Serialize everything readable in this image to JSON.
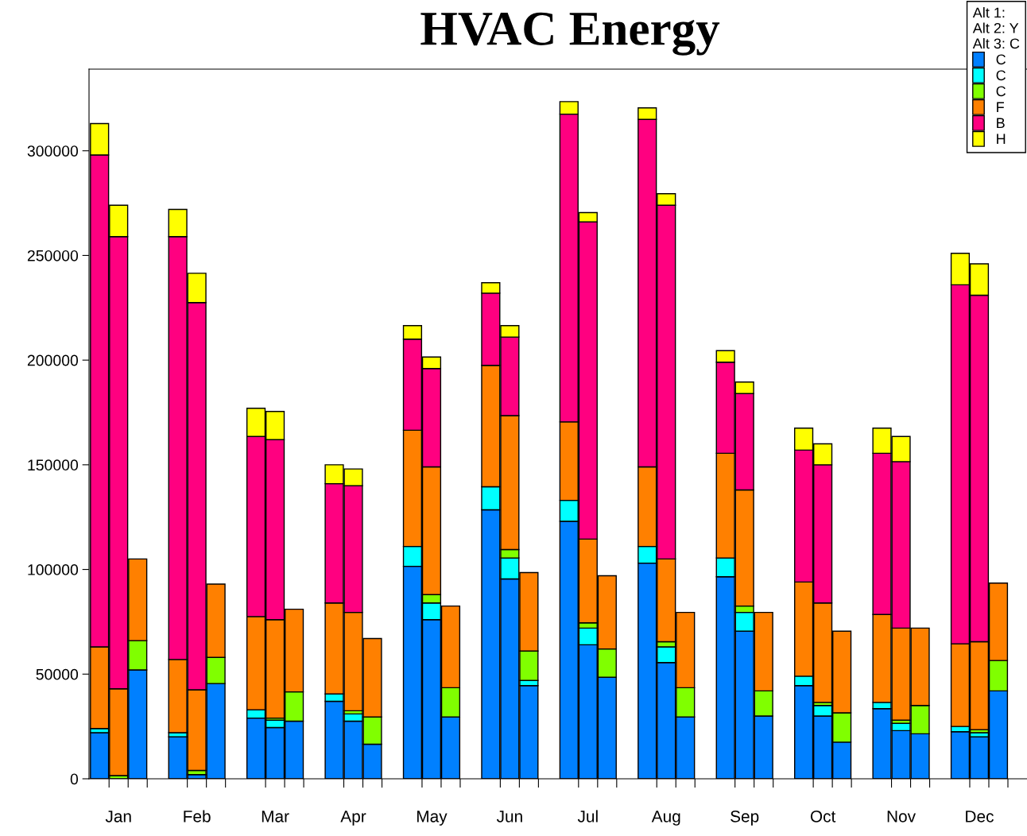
{
  "chart_data": {
    "type": "bar",
    "title": "HVAC Energy",
    "stacked": true,
    "legend": "top right",
    "legend_title": "Alt 1:\nAlt 2: Y\nAlt 3: C",
    "grid": false,
    "categories": [
      null,
      "Jan",
      null,
      null,
      "Feb",
      null,
      null,
      "Mar",
      null,
      null,
      "Apr",
      null,
      null,
      "May",
      null,
      null,
      "Jun",
      null,
      null,
      "Jul",
      null,
      null,
      "Aug",
      null,
      null,
      "Sep",
      null,
      null,
      "Oct",
      null,
      null,
      "Nov",
      null,
      null,
      "Dec",
      null
    ],
    "ylim": [
      0,
      339000
    ],
    "yticks": [
      0,
      50000,
      100000,
      150000,
      200000,
      250000,
      300000
    ],
    "series": [
      {
        "name": "C",
        "color": "#0080ff",
        "values": [
          22000,
          0,
          52000,
          20000,
          2000,
          45500,
          29000,
          24500,
          27500,
          37000,
          27500,
          16500,
          101500,
          76000,
          29500,
          128500,
          95500,
          44500,
          123000,
          64000,
          48500,
          103000,
          55500,
          29500,
          96500,
          70500,
          30000,
          44500,
          30000,
          17500,
          33500,
          23000,
          21500,
          22500,
          20000,
          42000
        ]
      },
      {
        "name": "C",
        "color": "#00ffff",
        "values": [
          2000,
          0,
          0,
          2000,
          0,
          0,
          4000,
          3500,
          0,
          3500,
          3500,
          0,
          9500,
          8000,
          0,
          11000,
          10000,
          2500,
          10000,
          8000,
          0,
          8000,
          7500,
          0,
          9000,
          9000,
          0,
          4500,
          5000,
          0,
          3000,
          3500,
          0,
          2500,
          2000,
          0
        ]
      },
      {
        "name": "C",
        "color": "#80ff00",
        "values": [
          0,
          1500,
          14000,
          0,
          2000,
          12500,
          0,
          1000,
          14000,
          0,
          1500,
          13000,
          0,
          4000,
          14000,
          0,
          4000,
          14000,
          0,
          2500,
          13500,
          0,
          2500,
          14000,
          0,
          3000,
          12000,
          0,
          1500,
          14000,
          0,
          1500,
          13500,
          0,
          1500,
          14500
        ]
      },
      {
        "name": "F",
        "color": "#ff8000",
        "values": [
          39000,
          41500,
          39000,
          35000,
          38500,
          35000,
          44500,
          47000,
          39500,
          43500,
          47000,
          37500,
          55500,
          61000,
          39000,
          58000,
          64000,
          37500,
          37500,
          40000,
          35000,
          38000,
          39500,
          36000,
          50000,
          55500,
          37500,
          45000,
          47500,
          39000,
          42000,
          44000,
          37000,
          39500,
          42000,
          37000
        ]
      },
      {
        "name": "B",
        "color": "#ff0080",
        "values": [
          235000,
          216000,
          0,
          202000,
          185000,
          0,
          86000,
          86000,
          0,
          57000,
          60500,
          0,
          43500,
          47000,
          0,
          34500,
          37500,
          0,
          147000,
          151500,
          0,
          166000,
          169000,
          0,
          43500,
          46000,
          0,
          63000,
          66000,
          0,
          77000,
          79500,
          0,
          171500,
          165500,
          0
        ]
      },
      {
        "name": "H",
        "color": "#ffff00",
        "values": [
          15000,
          15000,
          0,
          13000,
          14000,
          0,
          13500,
          13500,
          0,
          9000,
          8000,
          0,
          6500,
          5500,
          0,
          5000,
          5500,
          0,
          6000,
          4500,
          0,
          5500,
          5500,
          0,
          5500,
          5500,
          0,
          10500,
          10000,
          0,
          12000,
          12000,
          0,
          15000,
          15000,
          0
        ]
      }
    ]
  }
}
